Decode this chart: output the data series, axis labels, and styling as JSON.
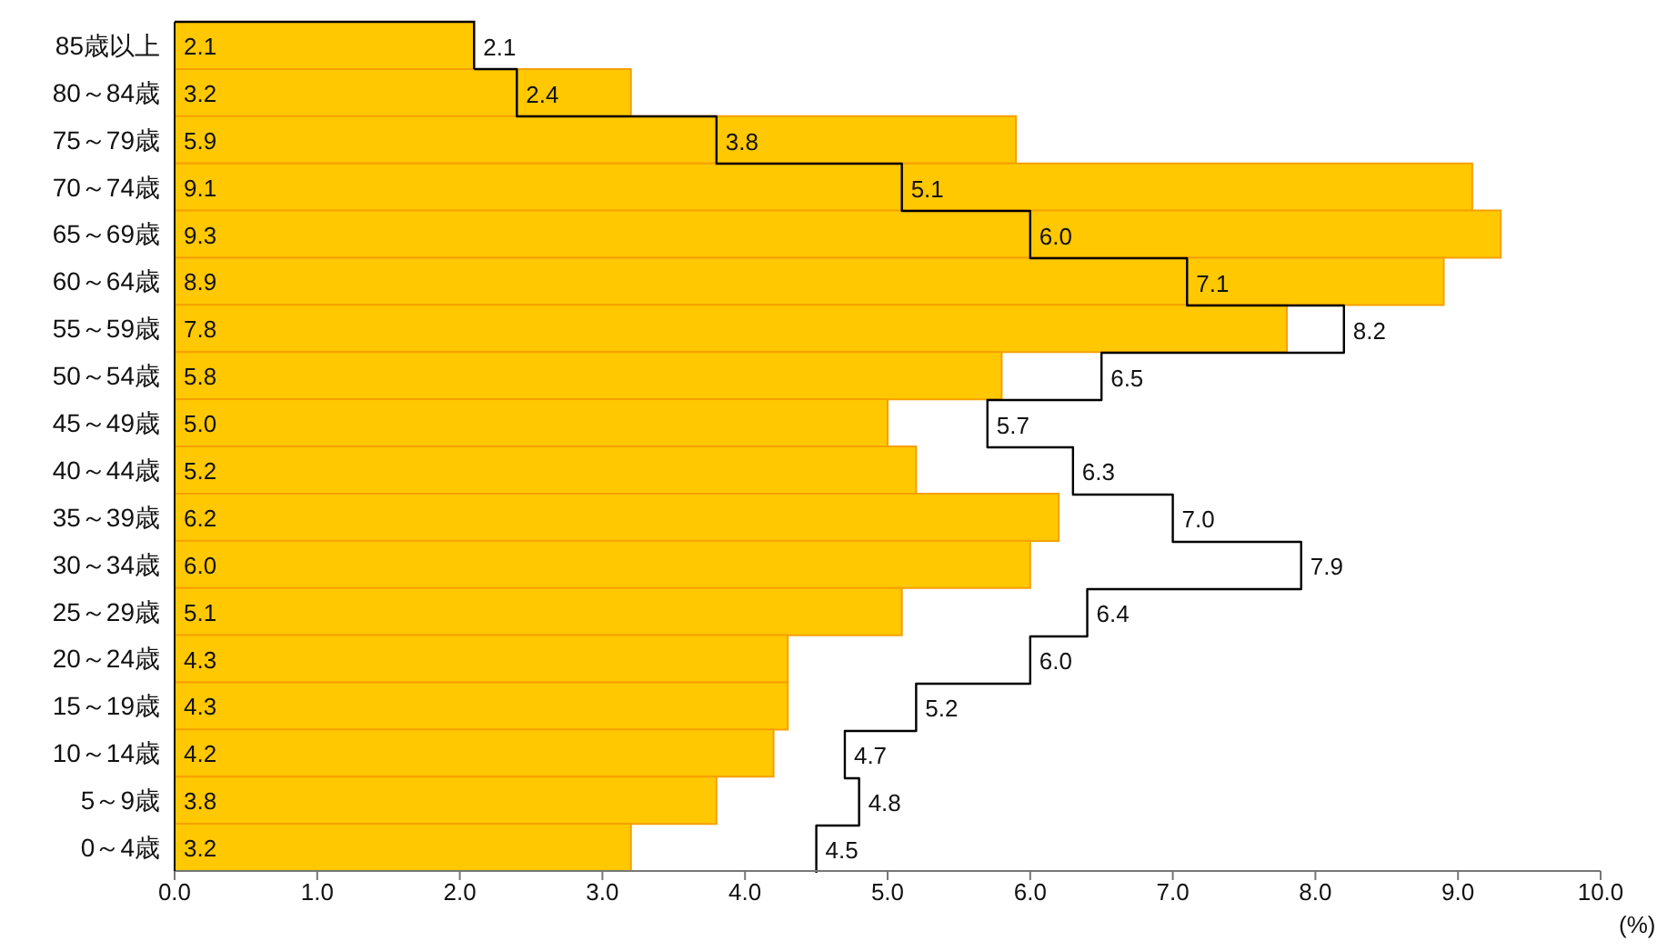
{
  "chart_data": {
    "type": "bar",
    "orientation": "horizontal",
    "xlabel": "(%)",
    "categories": [
      "85歳以上",
      "80～84歳",
      "75～79歳",
      "70～74歳",
      "65～69歳",
      "60～64歳",
      "55～59歳",
      "50～54歳",
      "45～49歳",
      "40～44歳",
      "35～39歳",
      "30～34歳",
      "25～29歳",
      "20～24歳",
      "15～19歳",
      "10～14歳",
      "5～9歳",
      "0～4歳"
    ],
    "series": [
      {
        "color": "#ffc800",
        "values": [
          2.1,
          3.2,
          5.9,
          9.1,
          9.3,
          8.9,
          7.8,
          5.8,
          5.0,
          5.2,
          6.2,
          6.0,
          5.1,
          4.3,
          4.3,
          4.2,
          3.8,
          3.2
        ],
        "value_labels": [
          "2.1",
          "3.2",
          "5.9",
          "9.1",
          "9.3",
          "8.9",
          "7.8",
          "5.8",
          "5.0",
          "5.2",
          "6.2",
          "6.0",
          "5.1",
          "4.3",
          "4.3",
          "4.2",
          "3.8",
          "3.2"
        ]
      },
      {
        "type": "step",
        "color": "#000000",
        "values": [
          2.1,
          2.4,
          3.8,
          5.1,
          6.0,
          7.1,
          8.2,
          6.5,
          5.7,
          6.3,
          7.0,
          7.9,
          6.4,
          6.0,
          5.2,
          4.7,
          4.8,
          4.5
        ],
        "value_labels": [
          "2.1",
          "2.4",
          "3.8",
          "5.1",
          "6.0",
          "7.1",
          "8.2",
          "6.5",
          "5.7",
          "6.3",
          "7.0",
          "7.9",
          "6.4",
          "6.0",
          "5.2",
          "4.7",
          "4.8",
          "4.5"
        ]
      }
    ],
    "xlim": [
      0,
      10
    ],
    "xticks": [
      {
        "value": 0,
        "label": "0.0"
      },
      {
        "value": 1,
        "label": "1.0"
      },
      {
        "value": 2,
        "label": "2.0"
      },
      {
        "value": 3,
        "label": "3.0"
      },
      {
        "value": 4,
        "label": "4.0"
      },
      {
        "value": 5,
        "label": "5.0"
      },
      {
        "value": 6,
        "label": "6.0"
      },
      {
        "value": 7,
        "label": "7.0"
      },
      {
        "value": 8,
        "label": "8.0"
      },
      {
        "value": 9,
        "label": "9.0"
      },
      {
        "value": 10,
        "label": "10.0"
      }
    ],
    "grid": false,
    "legend": false
  }
}
